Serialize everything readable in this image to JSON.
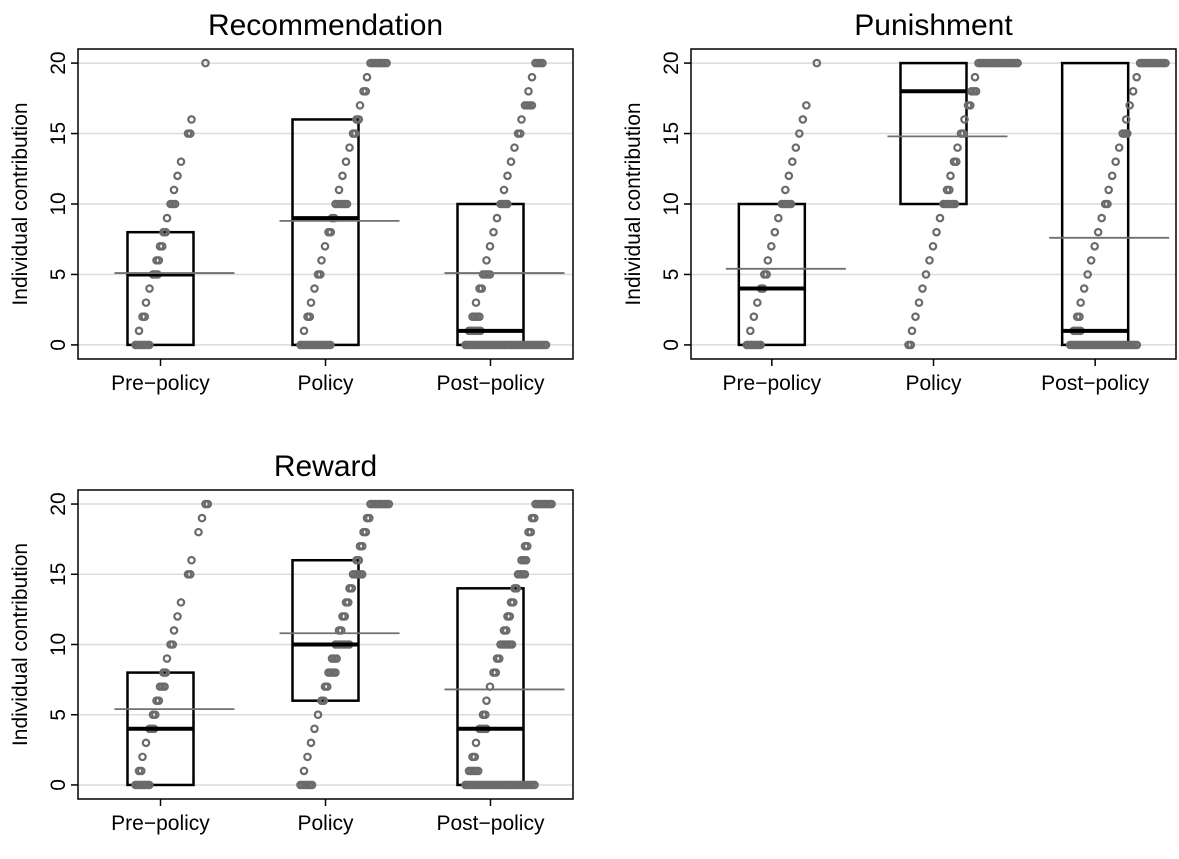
{
  "chart_data": [
    {
      "type": "boxplot",
      "title": "Recommendation",
      "ylabel": "Individual contribution",
      "categories": [
        "Pre−policy",
        "Policy",
        "Post−policy"
      ],
      "yticks": [
        "0",
        "5",
        "10",
        "15",
        "20"
      ],
      "ylim": [
        -1,
        21
      ],
      "grid": true,
      "boxes": [
        {
          "q1": 0,
          "median": 5,
          "q3": 8,
          "mean": 5.1
        },
        {
          "q1": 0,
          "median": 9,
          "q3": 16,
          "mean": 8.8
        },
        {
          "q1": 0,
          "median": 1,
          "q3": 10,
          "mean": 5.1
        }
      ],
      "points": [
        [
          [
            0,
            7
          ],
          [
            1,
            1
          ],
          [
            2,
            2
          ],
          [
            3,
            1
          ],
          [
            4,
            1
          ],
          [
            5,
            3
          ],
          [
            6,
            2
          ],
          [
            7,
            2
          ],
          [
            8,
            2
          ],
          [
            9,
            1
          ],
          [
            10,
            3
          ],
          [
            11,
            1
          ],
          [
            12,
            1
          ],
          [
            13,
            1
          ],
          [
            15,
            2
          ],
          [
            16,
            1
          ],
          [
            20,
            1
          ]
        ],
        [
          [
            0,
            14
          ],
          [
            1,
            1
          ],
          [
            2,
            2
          ],
          [
            3,
            1
          ],
          [
            4,
            1
          ],
          [
            5,
            2
          ],
          [
            6,
            1
          ],
          [
            7,
            1
          ],
          [
            8,
            2
          ],
          [
            9,
            2
          ],
          [
            10,
            6
          ],
          [
            11,
            1
          ],
          [
            12,
            1
          ],
          [
            13,
            1
          ],
          [
            14,
            1
          ],
          [
            15,
            2
          ],
          [
            16,
            2
          ],
          [
            17,
            1
          ],
          [
            18,
            2
          ],
          [
            19,
            1
          ],
          [
            20,
            8
          ]
        ],
        [
          [
            0,
            36
          ],
          [
            1,
            6
          ],
          [
            2,
            4
          ],
          [
            3,
            1
          ],
          [
            4,
            2
          ],
          [
            5,
            4
          ],
          [
            6,
            1
          ],
          [
            7,
            1
          ],
          [
            8,
            1
          ],
          [
            9,
            1
          ],
          [
            10,
            4
          ],
          [
            11,
            1
          ],
          [
            12,
            1
          ],
          [
            13,
            1
          ],
          [
            14,
            1
          ],
          [
            15,
            2
          ],
          [
            16,
            1
          ],
          [
            17,
            4
          ],
          [
            18,
            1
          ],
          [
            19,
            1
          ],
          [
            20,
            4
          ]
        ]
      ]
    },
    {
      "type": "boxplot",
      "title": "Punishment",
      "ylabel": "Individual contribution",
      "categories": [
        "Pre−policy",
        "Policy",
        "Post−policy"
      ],
      "yticks": [
        "0",
        "5",
        "10",
        "15",
        "20"
      ],
      "ylim": [
        -1,
        21
      ],
      "grid": true,
      "boxes": [
        {
          "q1": 0,
          "median": 4,
          "q3": 10,
          "mean": 5.4
        },
        {
          "q1": 10,
          "median": 18,
          "q3": 20,
          "mean": 14.8
        },
        {
          "q1": 0,
          "median": 1,
          "q3": 20,
          "mean": 7.6
        }
      ],
      "points": [
        [
          [
            0,
            7
          ],
          [
            1,
            1
          ],
          [
            2,
            1
          ],
          [
            3,
            1
          ],
          [
            4,
            2
          ],
          [
            5,
            2
          ],
          [
            6,
            1
          ],
          [
            7,
            1
          ],
          [
            8,
            1
          ],
          [
            9,
            1
          ],
          [
            10,
            5
          ],
          [
            11,
            1
          ],
          [
            12,
            1
          ],
          [
            13,
            1
          ],
          [
            14,
            1
          ],
          [
            15,
            1
          ],
          [
            16,
            1
          ],
          [
            17,
            1
          ],
          [
            20,
            1
          ]
        ],
        [
          [
            0,
            2
          ],
          [
            1,
            1
          ],
          [
            2,
            1
          ],
          [
            3,
            1
          ],
          [
            4,
            1
          ],
          [
            5,
            1
          ],
          [
            6,
            1
          ],
          [
            7,
            1
          ],
          [
            8,
            1
          ],
          [
            9,
            1
          ],
          [
            10,
            6
          ],
          [
            11,
            2
          ],
          [
            12,
            1
          ],
          [
            13,
            2
          ],
          [
            14,
            1
          ],
          [
            15,
            2
          ],
          [
            16,
            1
          ],
          [
            17,
            2
          ],
          [
            18,
            3
          ],
          [
            19,
            1
          ],
          [
            20,
            18
          ]
        ],
        [
          [
            0,
            30
          ],
          [
            1,
            4
          ],
          [
            2,
            2
          ],
          [
            3,
            1
          ],
          [
            4,
            1
          ],
          [
            5,
            1
          ],
          [
            6,
            1
          ],
          [
            7,
            1
          ],
          [
            8,
            1
          ],
          [
            9,
            1
          ],
          [
            10,
            2
          ],
          [
            11,
            1
          ],
          [
            12,
            1
          ],
          [
            13,
            1
          ],
          [
            14,
            1
          ],
          [
            15,
            3
          ],
          [
            16,
            1
          ],
          [
            17,
            1
          ],
          [
            18,
            1
          ],
          [
            19,
            1
          ],
          [
            20,
            12
          ]
        ]
      ]
    },
    {
      "type": "boxplot",
      "title": "Reward",
      "ylabel": "Individual contribution",
      "categories": [
        "Pre−policy",
        "Policy",
        "Post−policy"
      ],
      "yticks": [
        "0",
        "5",
        "10",
        "15",
        "20"
      ],
      "ylim": [
        -1,
        21
      ],
      "grid": true,
      "boxes": [
        {
          "q1": 0,
          "median": 4,
          "q3": 8,
          "mean": 5.4
        },
        {
          "q1": 6,
          "median": 10,
          "q3": 16,
          "mean": 10.8
        },
        {
          "q1": 0,
          "median": 4,
          "q3": 14,
          "mean": 6.8
        }
      ],
      "points": [
        [
          [
            0,
            7
          ],
          [
            1,
            2
          ],
          [
            2,
            1
          ],
          [
            3,
            1
          ],
          [
            4,
            3
          ],
          [
            5,
            2
          ],
          [
            6,
            2
          ],
          [
            7,
            3
          ],
          [
            8,
            2
          ],
          [
            9,
            1
          ],
          [
            10,
            2
          ],
          [
            11,
            1
          ],
          [
            12,
            1
          ],
          [
            13,
            1
          ],
          [
            15,
            2
          ],
          [
            16,
            1
          ],
          [
            18,
            1
          ],
          [
            19,
            1
          ],
          [
            20,
            2
          ]
        ],
        [
          [
            0,
            6
          ],
          [
            1,
            1
          ],
          [
            2,
            1
          ],
          [
            3,
            1
          ],
          [
            4,
            1
          ],
          [
            5,
            1
          ],
          [
            6,
            2
          ],
          [
            7,
            2
          ],
          [
            8,
            4
          ],
          [
            9,
            3
          ],
          [
            10,
            7
          ],
          [
            11,
            2
          ],
          [
            12,
            2
          ],
          [
            13,
            2
          ],
          [
            14,
            2
          ],
          [
            15,
            5
          ],
          [
            16,
            2
          ],
          [
            17,
            2
          ],
          [
            18,
            2
          ],
          [
            19,
            2
          ],
          [
            20,
            9
          ]
        ],
        [
          [
            0,
            31
          ],
          [
            1,
            5
          ],
          [
            2,
            2
          ],
          [
            3,
            1
          ],
          [
            4,
            4
          ],
          [
            5,
            2
          ],
          [
            6,
            1
          ],
          [
            7,
            1
          ],
          [
            8,
            2
          ],
          [
            9,
            2
          ],
          [
            10,
            6
          ],
          [
            11,
            2
          ],
          [
            12,
            2
          ],
          [
            13,
            2
          ],
          [
            14,
            2
          ],
          [
            15,
            4
          ],
          [
            16,
            3
          ],
          [
            17,
            2
          ],
          [
            18,
            2
          ],
          [
            19,
            2
          ],
          [
            20,
            8
          ]
        ]
      ]
    }
  ]
}
